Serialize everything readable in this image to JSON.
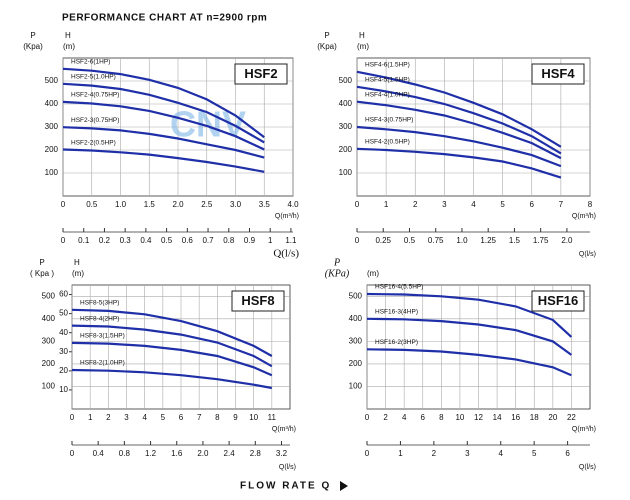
{
  "title": "PERFORMANCE CHART AT  n=2900 rpm",
  "footer": "FLOW  RATE Q",
  "chart_data": [
    {
      "type": "line",
      "title": "HSF2",
      "watermark": "CNV",
      "ylabel": "P",
      "yunit": "(Kpa)",
      "y2label": "H",
      "y2unit": "(m)",
      "xlabel": "Q(m³/h)",
      "x2label": "Q(l/s)",
      "xlim": [
        0,
        4
      ],
      "xticks": [
        0,
        0.5,
        {
          "value": 1,
          "label": "1.0"
        },
        1.5,
        {
          "value": 2,
          "label": "2.0"
        },
        2.5,
        {
          "value": 3,
          "label": "3.0"
        },
        3.5,
        {
          "value": 4,
          "label": "4.0"
        }
      ],
      "ylim": [
        0,
        600
      ],
      "yticks": [
        100,
        200,
        300,
        400,
        500
      ],
      "x2lim": [
        0,
        1.11
      ],
      "x2ticks": [
        0,
        0.1,
        0.2,
        0.3,
        0.4,
        0.5,
        0.6,
        0.7,
        0.8,
        0.9,
        1,
        1.1
      ],
      "grid": true,
      "x": [
        0,
        0.5,
        1,
        1.5,
        2,
        2.5,
        3,
        3.5
      ],
      "series": [
        {
          "name": "HSF2-6(1HP)",
          "color": "#1f2fa8",
          "values": [
            553,
            545,
            530,
            505,
            470,
            420,
            350,
            255
          ]
        },
        {
          "name": "HSF2-5(1.0HP)",
          "color": "#1f2fa8",
          "values": [
            488,
            480,
            465,
            440,
            405,
            365,
            305,
            233
          ]
        },
        {
          "name": "HSF2-4(0.75HP)",
          "color": "#1f2fa8",
          "values": [
            409,
            402,
            390,
            370,
            340,
            305,
            260,
            202
          ]
        },
        {
          "name": "HSF2-3(0.75HP)",
          "color": "#1f2fa8",
          "values": [
            299,
            294,
            285,
            270,
            250,
            225,
            200,
            167
          ]
        },
        {
          "name": "HSF2-2(0.5HP)",
          "color": "#1f2fa8",
          "values": [
            202,
            198,
            190,
            180,
            165,
            148,
            128,
            105
          ]
        }
      ]
    },
    {
      "type": "line",
      "title": "HSF4",
      "ylabel": "P",
      "yunit": "(Kpa)",
      "y2label": "H",
      "y2unit": "(m)",
      "xlabel": "Q(m³/h)",
      "x2label": "Q(l/s)",
      "xlim": [
        0,
        8
      ],
      "xticks": [
        0,
        1,
        2,
        3,
        4,
        5,
        6,
        7,
        8
      ],
      "ylim": [
        0,
        600
      ],
      "yticks": [
        100,
        200,
        300,
        400,
        500
      ],
      "x2lim": [
        0,
        2.22
      ],
      "x2ticks": [
        0,
        0.25,
        0.5,
        0.75,
        {
          "value": 1,
          "label": "1.0"
        },
        1.25,
        1.5,
        1.75,
        {
          "value": 2,
          "label": "2.0"
        }
      ],
      "grid": true,
      "x": [
        0,
        1,
        2,
        3,
        4,
        5,
        6,
        7
      ],
      "series": [
        {
          "name": "HSF4-6(1.5HP)",
          "color": "#1f2fa8",
          "values": [
            540,
            515,
            485,
            450,
            405,
            355,
            290,
            214
          ]
        },
        {
          "name": "HSF4-5(1.5HP)",
          "color": "#1f2fa8",
          "values": [
            475,
            455,
            430,
            400,
            360,
            315,
            260,
            185
          ]
        },
        {
          "name": "HSF4-4(1.0HP)",
          "color": "#1f2fa8",
          "values": [
            410,
            395,
            375,
            350,
            315,
            275,
            230,
            165
          ]
        },
        {
          "name": "HSF4-3(0.75HP)",
          "color": "#1f2fa8",
          "values": [
            300,
            290,
            278,
            260,
            238,
            210,
            178,
            130
          ]
        },
        {
          "name": "HSF4-2(0.5HP)",
          "color": "#1f2fa8",
          "values": [
            205,
            200,
            192,
            182,
            168,
            150,
            120,
            80
          ]
        }
      ]
    },
    {
      "type": "line",
      "title": "HSF8",
      "ylabel": "P",
      "yunit": "( Kpa )",
      "y2label": "H",
      "y2unit": "(m)",
      "xlabel": "Q(m³/h)",
      "x2label": "Q(l/s)",
      "xlim": [
        0,
        12
      ],
      "xticks": [
        0,
        1,
        2,
        3,
        4,
        5,
        6,
        7,
        8,
        9,
        10,
        11
      ],
      "ylim": [
        0,
        550
      ],
      "yticks": [
        100,
        200,
        300,
        400,
        500
      ],
      "y2lim": [
        0,
        65
      ],
      "y2ticks": [
        10,
        20,
        30,
        40,
        50,
        60
      ],
      "x2lim": [
        0,
        3.33
      ],
      "x2ticks": [
        0,
        0.4,
        0.8,
        1.2,
        1.6,
        {
          "value": 2,
          "label": "2.0"
        },
        2.4,
        2.8,
        3.2
      ],
      "grid": true,
      "x": [
        0,
        2,
        4,
        6,
        8,
        10,
        11
      ],
      "series": [
        {
          "name": "HSF8-5(3HP)",
          "color": "#1f2fa8",
          "values": [
            440,
            435,
            420,
            390,
            345,
            280,
            235
          ]
        },
        {
          "name": "HSF8-4(2HP)",
          "color": "#1f2fa8",
          "values": [
            370,
            366,
            352,
            330,
            295,
            235,
            190
          ]
        },
        {
          "name": "HSF8-3(1.5HP)",
          "color": "#1f2fa8",
          "values": [
            293,
            290,
            280,
            262,
            235,
            185,
            150
          ]
        },
        {
          "name": "HSF8-2(1.0HP)",
          "color": "#1f2fa8",
          "values": [
            173,
            170,
            163,
            150,
            132,
            108,
            93
          ]
        }
      ]
    },
    {
      "type": "line",
      "title": "HSF16",
      "ylabel": "P",
      "yunit": "(KPa)",
      "y2unit": "(m)",
      "xlabel": "Q(m³/h)",
      "x2label": "Q(l/s)",
      "xlim": [
        0,
        24
      ],
      "xticks": [
        0,
        2,
        4,
        6,
        8,
        10,
        12,
        14,
        16,
        18,
        20,
        22
      ],
      "ylim": [
        0,
        550
      ],
      "yticks": [
        100,
        200,
        300,
        400,
        500
      ],
      "x2lim": [
        0,
        6.67
      ],
      "x2ticks": [
        0,
        1,
        2,
        3,
        4,
        5,
        6
      ],
      "grid": true,
      "x": [
        0,
        4,
        8,
        12,
        16,
        20,
        22
      ],
      "series": [
        {
          "name": "HSF16-4(5.5HP)",
          "color": "#1f2fa8",
          "values": [
            510,
            508,
            500,
            485,
            455,
            395,
            320
          ]
        },
        {
          "name": "HSF16-3(4HP)",
          "color": "#1f2fa8",
          "values": [
            400,
            398,
            390,
            375,
            350,
            300,
            240
          ]
        },
        {
          "name": "HSF16-2(3HP)",
          "color": "#1f2fa8",
          "values": [
            265,
            262,
            255,
            240,
            220,
            185,
            150
          ]
        }
      ]
    }
  ]
}
